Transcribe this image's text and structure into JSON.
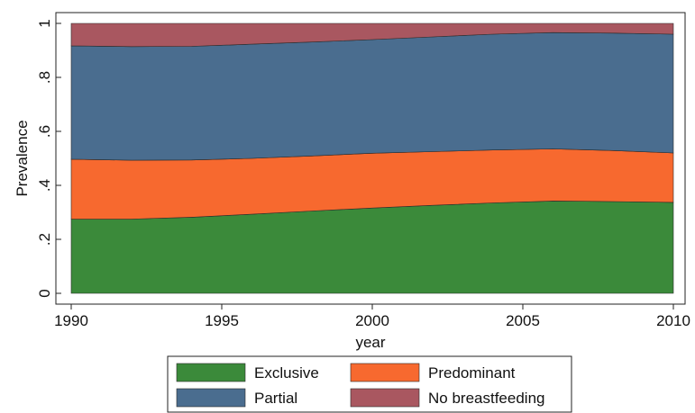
{
  "chart_data": {
    "type": "area",
    "stacked": true,
    "x": [
      1990,
      1992,
      1994,
      1996,
      1998,
      2000,
      2002,
      2004,
      2006,
      2008,
      2010
    ],
    "series": [
      {
        "name": "Exclusive",
        "color": "#3b8a3a",
        "values": [
          0.275,
          0.275,
          0.282,
          0.293,
          0.305,
          0.316,
          0.326,
          0.335,
          0.342,
          0.34,
          0.337
        ]
      },
      {
        "name": "Predominant",
        "color": "#f7692f",
        "values": [
          0.222,
          0.218,
          0.212,
          0.207,
          0.204,
          0.203,
          0.199,
          0.196,
          0.193,
          0.189,
          0.183
        ]
      },
      {
        "name": "Partial",
        "color": "#4a6d8f",
        "values": [
          0.42,
          0.421,
          0.421,
          0.423,
          0.422,
          0.421,
          0.425,
          0.429,
          0.431,
          0.435,
          0.44
        ]
      },
      {
        "name": "No breastfeeding",
        "color": "#a95760",
        "values": [
          0.083,
          0.086,
          0.085,
          0.077,
          0.069,
          0.06,
          0.05,
          0.04,
          0.034,
          0.036,
          0.04
        ]
      }
    ],
    "xlabel": "year",
    "ylabel": "Prevalence",
    "xlim": [
      1990,
      2010
    ],
    "ylim": [
      0,
      1
    ],
    "xticks": [
      1990,
      1995,
      2000,
      2005,
      2010
    ],
    "xtick_labels": [
      "1990",
      "1995",
      "2000",
      "2005",
      "2010"
    ],
    "yticks": [
      0,
      0.2,
      0.4,
      0.6,
      0.8,
      1
    ],
    "ytick_labels": [
      "0",
      ".2",
      ".4",
      ".6",
      ".8",
      "1"
    ],
    "legend_placement": "bottom",
    "legend_order": [
      "Exclusive",
      "Predominant",
      "Partial",
      "No breastfeeding"
    ],
    "grid": false
  }
}
